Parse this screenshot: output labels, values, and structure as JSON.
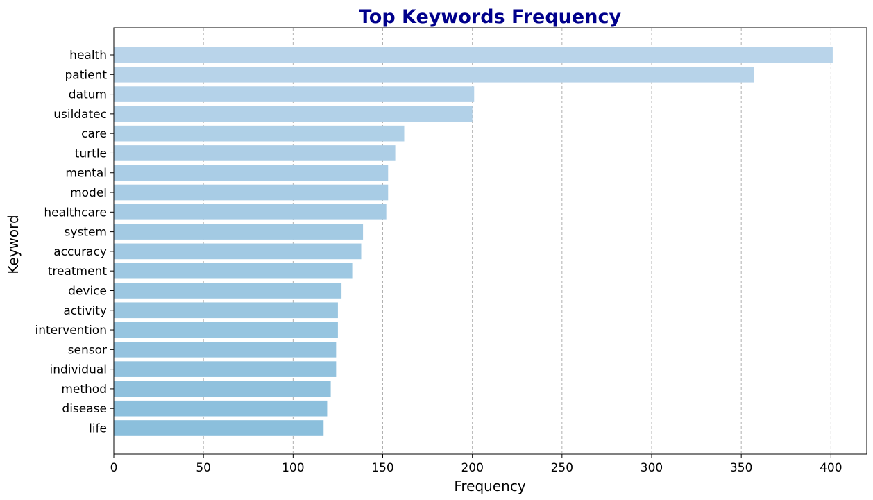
{
  "chart_data": {
    "type": "bar",
    "orientation": "horizontal",
    "title": "Top Keywords Frequency",
    "xlabel": "Frequency",
    "ylabel": "Keyword",
    "xlim": [
      0,
      420
    ],
    "xticks": [
      0,
      50,
      100,
      150,
      200,
      250,
      300,
      350,
      400
    ],
    "grid": "vertical-dashed",
    "categories": [
      "health",
      "patient",
      "datum",
      "usildatec",
      "care",
      "turtle",
      "mental",
      "model",
      "healthcare",
      "system",
      "accuracy",
      "treatment",
      "device",
      "activity",
      "intervention",
      "sensor",
      "individual",
      "method",
      "disease",
      "life"
    ],
    "values": [
      401,
      357,
      201,
      200,
      162,
      157,
      153,
      153,
      152,
      139,
      138,
      133,
      127,
      125,
      125,
      124,
      124,
      121,
      119,
      117
    ],
    "colors": {
      "title": "#00008b",
      "bar_top": "#b9d4ea",
      "bar_bottom": "#8bbfdc",
      "grid": "#b0b0b0",
      "axis": "#000000"
    }
  }
}
